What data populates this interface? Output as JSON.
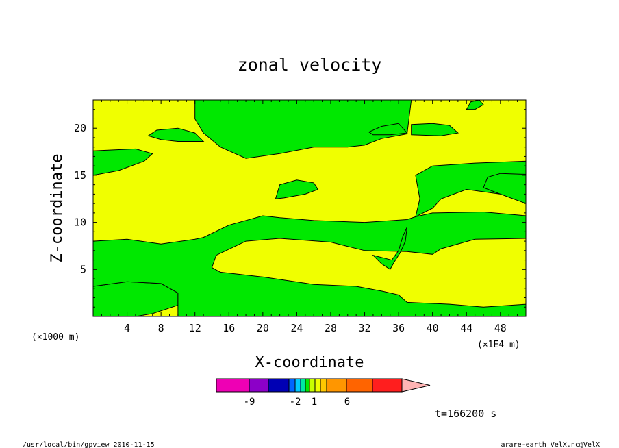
{
  "chart_data": {
    "type": "heatmap",
    "title": "zonal velocity",
    "xlabel": "X-coordinate",
    "ylabel": "Z-coordinate",
    "x_unit_left": "(×1000 m)",
    "x_unit_right": "(×1E4 m)",
    "xlim": [
      0,
      51
    ],
    "ylim": [
      0,
      23
    ],
    "x_ticks": [
      "4",
      "8",
      "12",
      "16",
      "20",
      "24",
      "28",
      "32",
      "36",
      "40",
      "44",
      "48"
    ],
    "y_ticks": [
      "5",
      "10",
      "15",
      "20"
    ],
    "grid": false,
    "colors": {
      "positive": "#f0ff00",
      "negative": "#00e800",
      "outline": "#000000"
    },
    "negative_regions": [
      [
        [
          0,
          15
        ],
        [
          3,
          15.5
        ],
        [
          6,
          16.5
        ],
        [
          7,
          17.3
        ],
        [
          5,
          17.8
        ],
        [
          0,
          17.6
        ]
      ],
      [
        [
          0,
          0
        ],
        [
          0,
          3.2
        ],
        [
          4,
          3.7
        ],
        [
          8,
          3.5
        ],
        [
          10,
          2.5
        ],
        [
          10,
          1.2
        ],
        [
          7,
          0.3
        ],
        [
          5,
          0
        ]
      ],
      [
        [
          0,
          3.2
        ],
        [
          0,
          8
        ],
        [
          4,
          8.2
        ],
        [
          8,
          7.7
        ],
        [
          12,
          8.2
        ],
        [
          13,
          8.4
        ],
        [
          16,
          9.7
        ],
        [
          20,
          10.7
        ],
        [
          22,
          10.5
        ],
        [
          26,
          10.2
        ],
        [
          32,
          10
        ],
        [
          37,
          10.3
        ],
        [
          38,
          10.6
        ],
        [
          40,
          11
        ],
        [
          46,
          11.1
        ],
        [
          51,
          10.7
        ],
        [
          51,
          8.3
        ],
        [
          45,
          8.2
        ],
        [
          41,
          7.2
        ],
        [
          40,
          6.6
        ],
        [
          37,
          6.9
        ],
        [
          32,
          7
        ],
        [
          28,
          7.9
        ],
        [
          22,
          8.3
        ],
        [
          18,
          8
        ],
        [
          14.5,
          6.5
        ],
        [
          14,
          5.2
        ],
        [
          15,
          4.7
        ],
        [
          20,
          4.2
        ],
        [
          26,
          3.4
        ],
        [
          31,
          3.2
        ],
        [
          34,
          2.7
        ],
        [
          36,
          2.3
        ],
        [
          37,
          1.5
        ],
        [
          42,
          1.3
        ],
        [
          46,
          1
        ],
        [
          51,
          1.3
        ],
        [
          51,
          0
        ],
        [
          10,
          0
        ],
        [
          10,
          1.2
        ],
        [
          10,
          2.5
        ],
        [
          8,
          3.5
        ],
        [
          4,
          3.7
        ]
      ],
      [
        [
          38,
          10.6
        ],
        [
          38.5,
          12.5
        ],
        [
          38,
          15
        ],
        [
          40,
          16
        ],
        [
          45,
          16.3
        ],
        [
          51,
          16.5
        ],
        [
          51,
          12
        ],
        [
          48,
          13
        ],
        [
          46,
          13.7
        ],
        [
          46.5,
          14.8
        ],
        [
          48,
          15.2
        ],
        [
          51,
          15.1
        ],
        [
          51,
          12
        ],
        [
          48,
          13
        ],
        [
          44,
          13.5
        ],
        [
          41,
          12.5
        ],
        [
          40,
          11.5
        ]
      ],
      [
        [
          21.5,
          12.5
        ],
        [
          22,
          14
        ],
        [
          24,
          14.5
        ],
        [
          26,
          14.2
        ],
        [
          26.5,
          13.5
        ],
        [
          25,
          13
        ],
        [
          22.5,
          12.6
        ]
      ],
      [
        [
          12,
          23
        ],
        [
          12,
          21
        ],
        [
          13,
          19.5
        ],
        [
          15,
          18
        ],
        [
          18,
          16.8
        ],
        [
          22,
          17.3
        ],
        [
          26,
          18
        ],
        [
          30,
          18
        ],
        [
          32,
          18.2
        ],
        [
          34,
          18.9
        ],
        [
          37,
          19.4
        ],
        [
          37.5,
          23
        ]
      ],
      [
        [
          6.5,
          19.2
        ],
        [
          7.5,
          19.8
        ],
        [
          10,
          20
        ],
        [
          12,
          19.5
        ],
        [
          13,
          18.6
        ],
        [
          10,
          18.6
        ],
        [
          8,
          18.8
        ]
      ],
      [
        [
          32.5,
          19.6
        ],
        [
          34,
          20.2
        ],
        [
          36,
          20.5
        ],
        [
          37,
          19.5
        ],
        [
          35,
          19.3
        ],
        [
          33,
          19.3
        ]
      ],
      [
        [
          37.5,
          19.3
        ],
        [
          37.5,
          20.4
        ],
        [
          40,
          20.5
        ],
        [
          42,
          20.3
        ],
        [
          43,
          19.5
        ],
        [
          41,
          19.2
        ]
      ],
      [
        [
          44,
          22
        ],
        [
          44.5,
          22.8
        ],
        [
          45.5,
          23
        ],
        [
          46,
          22.5
        ],
        [
          45,
          22
        ]
      ],
      [
        [
          33,
          6.5
        ],
        [
          34,
          5.6
        ],
        [
          35,
          5
        ],
        [
          35.5,
          5.8
        ],
        [
          36.2,
          6.8
        ],
        [
          36.8,
          8
        ],
        [
          37,
          9.5
        ],
        [
          36.5,
          8.5
        ],
        [
          36,
          7
        ],
        [
          35.2,
          6
        ]
      ]
    ]
  },
  "colorbar": {
    "colors": [
      "#ee00b4",
      "#8c00c8",
      "#0000b4",
      "#0064ff",
      "#00c8ff",
      "#00e8a0",
      "#00e800",
      "#c8ff00",
      "#f0ff00",
      "#ffc800",
      "#ff9600",
      "#ff6400",
      "#ff1e1e",
      "#ff7878",
      "#ffb4b4"
    ],
    "labels": [
      "-9",
      "-2",
      "1",
      "6"
    ]
  },
  "time_label": "t=166200 s",
  "footer_left": "/usr/local/bin/gpview   2010-11-15",
  "footer_right": "arare-earth_VelX.nc@VelX"
}
